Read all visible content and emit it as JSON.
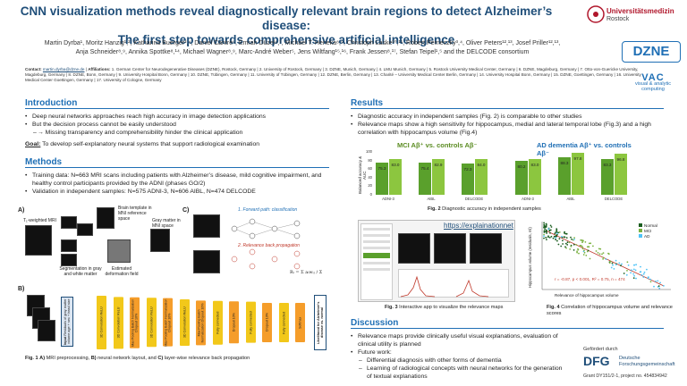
{
  "header": {
    "title_line1": "CNN visualization methods reveal diagnostically relevant brain regions to detect Alzheimer’s disease:",
    "title_line2": "The first step towards comprehensive artificial intelligence",
    "authors_line1": "Martin Dyrba¹, Moritz Hanzig¹,², Katharina Buerger³,⁴, Daniel Cantré⁵, Emrah Düzel⁶,⁷, Michael T. Heneka⁸,⁹, Christoph Laske¹⁰,¹¹, Robert Perneczky³,⁴, Oliver Peters¹²,¹³, Josef Priller¹²,¹³,",
    "authors_line2": "Anja Schneider⁸,⁹, Annika Spottke⁸,¹⁴, Michael Wagner⁸,⁹, Marc-André Weber⁵, Jens Wiltfang¹⁵,¹⁶, Frank Jessen⁸,¹⁷, Stefan Teipel¹,⁵ and the DELCODE consortium",
    "contact_label": "Contact:",
    "contact_email": "martin.dyrba@dzne.de",
    "affiliations_label": "Affiliations:",
    "affiliations_text": "1. German Center for Neurodegenerative Diseases (DZNE), Rostock, Germany | 2. University of Rostock, Germany | 3. DZNE, Munich, Germany | 4. LMU Munich, Germany | 5. Rostock University Medical Center, Germany | 6. DZNE, Magdeburg, Germany | 7. Otto-von-Guericke University, Magdeburg, Germany | 8. DZNE, Bonn, Germany | 9. University Hospital Bonn, Germany | 10. DZNE, Tübingen, Germany | 11. University of Tübingen, Germany | 12. DZNE, Berlin, Germany | 13. Charité – University Medical Center Berlin, Germany | 14. University Hospital Bonn, Germany | 15. DZNE, Goettingen, Germany | 16. University Medical Center Goettingen, Germany | 17. University of Cologne, Germany"
  },
  "logos": {
    "unimed_1": "Universitätsmedizin",
    "unimed_2": "Rostock",
    "dzne": "DZNE",
    "vac_big": "VAC",
    "vac_small": "visual & analytic computing"
  },
  "intro": {
    "heading": "Introduction",
    "b1": "Deep neural networks approaches reach high accuracy in image detection applications",
    "b2": "But the decision process cannot be easily understood",
    "b3": "→ Missing transparency and comprehensibility hinder the clinical application",
    "goal_label": "Goal:",
    "goal_text": "To develop self-explanatory neural systems that support radiological examination"
  },
  "methods": {
    "heading": "Methods",
    "b1": "Training data: N=663 MRI scans including patients with Alzheimer’s disease, mild cognitive impairment, and healthy control participants provided by the ADNI (phases GO/2)",
    "b2": "Validation in independent samples: N=575 ADNI-3, N=606 AIBL, N=474 DELCODE"
  },
  "fig1": {
    "A": "A)",
    "B": "B)",
    "C": "C)",
    "t1": "T₁-weighted MRI",
    "template": "Brain template in MNI reference space",
    "gm": "Gray matter in MNI space",
    "seg": "Segmentation in gray and white matter",
    "def": "Estimated deformation field",
    "c1": "1. Forward path: classification",
    "c2": "2. Relevance back propagation",
    "input_label": "Input",
    "input_sub": "Residuals of gray matter volume",
    "input_covariates": "age + sex + head size",
    "layers": [
      "3D Convolution ReLU",
      "3D Convolution ReLU",
      "Max Pooling Batch Normalization Dropout 10%",
      "3D Convolution ReLU",
      "Max Pooling Batch Normalization Dropout 10%",
      "3D Convolution ReLU",
      "Max Pooling Batch Normalization Dropout 10%",
      "Fully connected",
      "Dropout 10%",
      "Fully connected",
      "Dropout 10%",
      "Fully connected",
      "Softmax"
    ],
    "output": "Likelihood for Alzheimer’s disease vs. normal",
    "caption_b1": "Fig. 1",
    "caption_a": "A)",
    "caption_t1": " MRI preprocessing, ",
    "caption_b": "B)",
    "caption_t2": " neural network layout, and ",
    "caption_c": "C)",
    "caption_t3": " layer-wise relevance back propagation"
  },
  "results": {
    "heading": "Results",
    "b1": "Diagnostic accuracy in independent samples (Fig. 2) is comparable to other studies",
    "b2": "Relevance maps show a high sensitivity for hippocampus, medial and lateral temporal lobe (Fig.3) and a high correlation with hippocampus volume (Fig.4)"
  },
  "chart_data": {
    "type": "bar",
    "ylabel": "Balanced accuracy & AUC",
    "ylim": [
      0,
      100
    ],
    "yticks": [
      "0",
      "20",
      "40",
      "60",
      "80",
      "100"
    ],
    "groups": [
      {
        "title": "MCI Aβ⁺ vs. controls Aβ⁻",
        "categories": [
          "ADNI-3",
          "AIBL",
          "DELCODE"
        ],
        "acc": [
          75.3,
          75.4,
          72.3
        ],
        "auc": [
          83.0,
          82.9,
          84.0
        ]
      },
      {
        "title": "AD dementia Aβ⁺ vs. controls Aβ⁻",
        "categories": [
          "ADNI-3",
          "AIBL",
          "DELCODE"
        ],
        "acc": [
          80.2,
          88.3,
          83.3
        ],
        "auc": [
          83.0,
          97.8,
          96.8
        ]
      }
    ],
    "caption_bold": "Fig. 2",
    "caption_text": " Diagnostic accuracy in independent samples"
  },
  "fig3": {
    "url": "https://explainationnet",
    "caption_bold": "Fig. 3",
    "caption_text": " Interactive app to visualize the relevance maps"
  },
  "fig4": {
    "ylabel": "Hippocampus volume (residuals, ml)",
    "xlabel": "Relevance of hippocampus volume",
    "legend": [
      "Normal",
      "MCI",
      "AD"
    ],
    "stats": "r = -0.87, p < 0.001, R² = 0.75, n = 474",
    "caption_bold": "Fig. 4",
    "caption_text": " Correlation of hippocampus volume and relevance scores"
  },
  "discussion": {
    "heading": "Discussion",
    "b1": "Relevance maps provide clinically useful visual explanations, evaluation of clinical utility is planned",
    "b2": "Future work:",
    "s1": "Differential diagnosis with other forms of dementia",
    "s2": "Learning of radiological concepts with neural networks for the generation of textual explanations"
  },
  "funding": {
    "label": "Gefördert durch",
    "dfg": "DFG",
    "dfg_name1": "Deutsche",
    "dfg_name2": "Forschungsgemeinschaft",
    "grant": "Grant DY151/2-1, project no. 454834942"
  },
  "colors": {
    "accent": "#1f6fb5",
    "bar_dark": "#5aa02c",
    "bar_light": "#8cc63f",
    "layer_yellow": "#f2c81a",
    "layer_orange": "#f59d2a"
  }
}
